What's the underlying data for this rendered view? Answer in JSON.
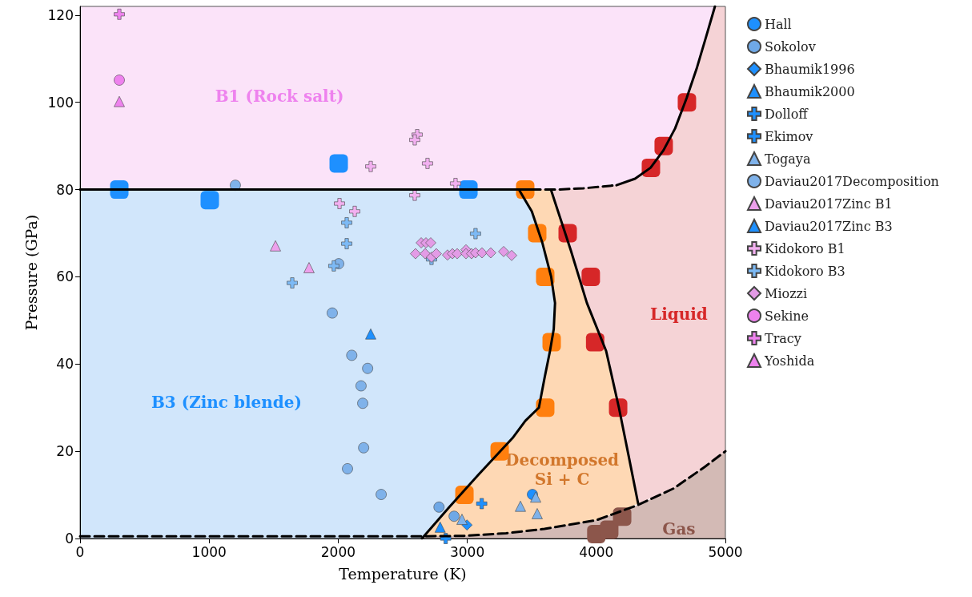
{
  "chart_data": {
    "type": "scatter",
    "xlabel": "Temperature (K)",
    "ylabel": "Pressure (GPa)",
    "xlim": [
      0,
      5000
    ],
    "ylim": [
      0,
      122
    ],
    "xticks": [
      0,
      1000,
      2000,
      3000,
      4000,
      5000
    ],
    "yticks": [
      0,
      20,
      40,
      60,
      80,
      100,
      120
    ],
    "grid": false,
    "legend": "right",
    "annotations": [
      "B1 (Rock salt)",
      "B3 (Zinc blende)",
      "Decomposed\nSi + C",
      "Liquid",
      "Gas"
    ],
    "series": [
      {
        "type": "line",
        "color": "#000000",
        "line_style": "solid",
        "marker": "none",
        "x": [
          0,
          3493
        ],
        "values": [
          80,
          80
        ]
      },
      {
        "type": "line",
        "color": "#000000",
        "line_style": "dashed",
        "marker": "none",
        "x": [
          3493,
          3700,
          3900,
          4156
        ],
        "values": [
          80,
          80,
          80.3,
          81
        ]
      },
      {
        "type": "line",
        "color": "#000000",
        "line_style": "solid",
        "marker": "none",
        "x": [
          4156,
          4300,
          4420,
          4520,
          4610,
          4700,
          4780,
          4850,
          4919
        ],
        "values": [
          81,
          82.5,
          85,
          89,
          94,
          101,
          108,
          115,
          122
        ]
      },
      {
        "type": "line",
        "color": "#000000",
        "line_style": "solid",
        "marker": "none",
        "x": [
          3400,
          3500,
          3580,
          3650,
          3680,
          3670,
          3641,
          3600,
          3555,
          3450,
          3350,
          3083,
          2854,
          2649
        ],
        "values": [
          80,
          75,
          68,
          60,
          54,
          48,
          43,
          37,
          30,
          27,
          23,
          14.5,
          7,
          0
        ]
      },
      {
        "type": "line",
        "color": "#000000",
        "line_style": "solid",
        "marker": "none",
        "x": [
          3648,
          3803,
          3927,
          4076,
          4175,
          4250,
          4324
        ],
        "values": [
          80,
          66,
          54,
          43,
          30,
          19,
          8
        ]
      },
      {
        "type": "line",
        "color": "#000000",
        "line_style": "dashed",
        "marker": "none",
        "x": [
          0,
          2649,
          2978,
          3300,
          3598,
          4000,
          4324,
          4600,
          4839,
          5000
        ],
        "values": [
          0.5,
          0.5,
          0.6,
          1.2,
          2.2,
          4.2,
          7.7,
          11.5,
          16.4,
          20
        ]
      },
      {
        "type": "scatter",
        "color": "#1e90ff",
        "marker": "square",
        "x": [
          304,
          1005,
          2004,
          3009
        ],
        "values": [
          80,
          77.6,
          86,
          80
        ]
      },
      {
        "type": "scatter",
        "color": "#ff7f0e",
        "marker": "square",
        "x": [
          3449,
          3542,
          3604,
          3654,
          3604,
          3251,
          2978
        ],
        "values": [
          80,
          70,
          60,
          45,
          30,
          20,
          10
        ]
      },
      {
        "type": "scatter",
        "color": "#d62728",
        "marker": "square",
        "x": [
          3778,
          3957,
          3991,
          4169
        ],
        "values": [
          70,
          60,
          45,
          30
        ]
      },
      {
        "type": "scatter",
        "color": "#d62728",
        "marker": "square",
        "x": [
          4423,
          4522,
          4702
        ],
        "values": [
          85,
          90,
          100
        ]
      },
      {
        "type": "scatter",
        "color": "#8c564b",
        "marker": "square",
        "x": [
          4000,
          4100,
          4200
        ],
        "values": [
          1,
          2,
          5
        ]
      },
      {
        "type": "scatter",
        "name": "Hall",
        "color": "#1e90ff",
        "marker": "circle",
        "x": [
          3505
        ],
        "values": [
          10.1
        ]
      },
      {
        "type": "scatter",
        "name": "Sokolov",
        "color": "#6fa8e6",
        "marker": "circle",
        "x": [
          2781,
          2898
        ],
        "values": [
          7.2,
          5.1
        ]
      },
      {
        "type": "scatter",
        "name": "Bhaumik1996",
        "color": "#1e90ff",
        "marker": "diamond",
        "x": [
          2998
        ],
        "values": [
          3.1
        ]
      },
      {
        "type": "scatter",
        "name": "Bhaumik2000",
        "color": "#1e90ff",
        "marker": "triangle",
        "x": [
          2790
        ],
        "values": [
          2.6
        ]
      },
      {
        "type": "scatter",
        "name": "Dolloff",
        "color": "#1e90ff",
        "marker": "cross",
        "x": [
          2833
        ],
        "values": [
          0
        ]
      },
      {
        "type": "scatter",
        "name": "Ekimov",
        "color": "#1e90ff",
        "marker": "cross",
        "x": [
          3112
        ],
        "values": [
          8
        ]
      },
      {
        "type": "scatter",
        "name": "Togaya",
        "color": "#7fb2ea",
        "marker": "triangle",
        "x": [
          2959,
          3412,
          3542,
          3530
        ],
        "values": [
          4.4,
          7.4,
          5.7,
          9.5
        ]
      },
      {
        "type": "scatter",
        "name": "Daviau2017Decomposition",
        "color": "#7fb2ea",
        "marker": "circle",
        "x": [
          1203,
          2004,
          1954,
          2105,
          2228,
          2177,
          2190,
          2197,
          2072,
          2333
        ],
        "values": [
          81,
          63,
          51.7,
          42,
          39,
          35,
          31,
          20.8,
          16,
          10.1
        ]
      },
      {
        "type": "scatter",
        "name": "Daviau2017Zinc B1",
        "color": "#eda0ec",
        "marker": "triangle",
        "x": [
          1514,
          1774
        ],
        "values": [
          67.1,
          62.1
        ]
      },
      {
        "type": "scatter",
        "name": "Daviau2017Zinc B3",
        "color": "#1e90ff",
        "marker": "triangle",
        "x": [
          2252
        ],
        "values": [
          46.9
        ]
      },
      {
        "type": "scatter",
        "name": "Kidokoro B1",
        "color": "#f2b0f0",
        "marker": "cross",
        "x": [
          2612,
          2593,
          2252,
          2692,
          2909,
          2593,
          2010,
          2128
        ],
        "values": [
          92.6,
          91.4,
          85.3,
          86,
          81.4,
          78.7,
          76.8,
          75
        ]
      },
      {
        "type": "scatter",
        "name": "Kidokoro B3",
        "color": "#7dbaf5",
        "marker": "cross",
        "x": [
          2066,
          2066,
          1966,
          1644,
          3064,
          2723
        ],
        "values": [
          72.4,
          67.6,
          62.5,
          58.6,
          69.9,
          64
        ]
      },
      {
        "type": "scatter",
        "name": "Miozzi",
        "color": "#e39be6",
        "marker": "diamond",
        "x": [
          2643,
          2680,
          2717,
          2599,
          2674,
          2723,
          2760,
          2847,
          2885,
          2922,
          2990,
          2990,
          3033,
          3064,
          3114,
          3182,
          3282,
          3344
        ],
        "values": [
          67.8,
          67.8,
          67.8,
          65.3,
          65.3,
          64.5,
          65.3,
          65,
          65.3,
          65.3,
          66.2,
          65.3,
          65.3,
          65.5,
          65.5,
          65.5,
          65.8,
          64.9
        ]
      },
      {
        "type": "scatter",
        "name": "Sekine",
        "color": "#ee82ee",
        "marker": "circle",
        "x": [
          304
        ],
        "values": [
          105.1
        ]
      },
      {
        "type": "scatter",
        "name": "Tracy",
        "color": "#ee82ee",
        "marker": "cross",
        "x": [
          304
        ],
        "values": [
          120.2
        ]
      },
      {
        "type": "scatter",
        "name": "Yoshida",
        "color": "#ee82ee",
        "marker": "triangle",
        "x": [
          304
        ],
        "values": [
          100.2
        ]
      }
    ]
  }
}
